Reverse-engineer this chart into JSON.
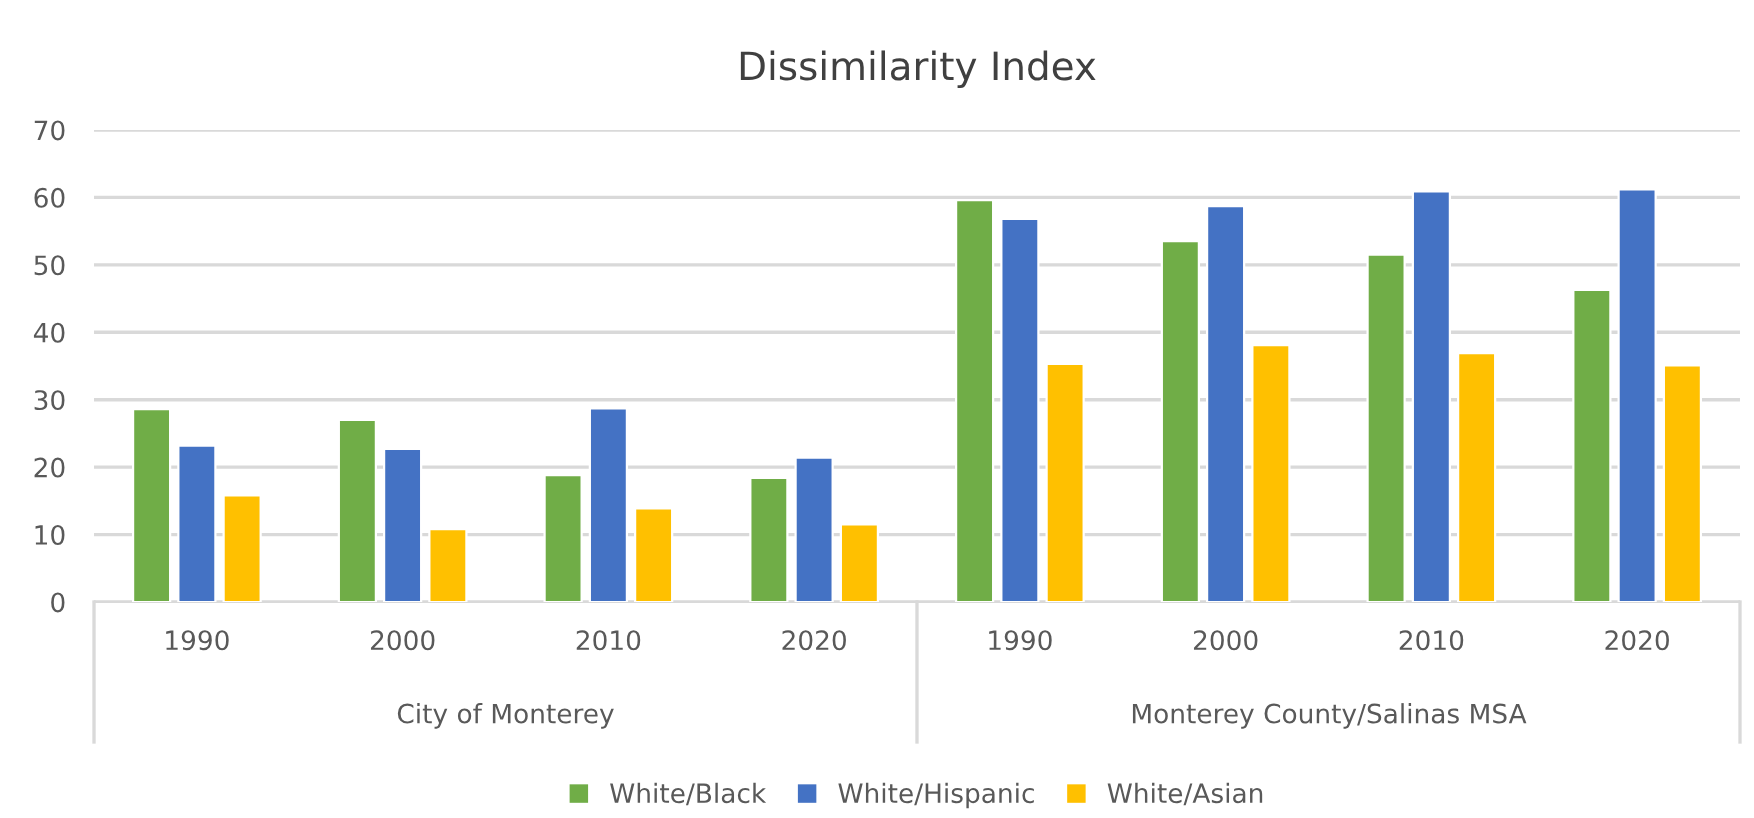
{
  "chart_data": {
    "type": "bar",
    "title": "Dissimilarity Index",
    "categories": [
      "1990",
      "2000",
      "2010",
      "2020",
      "1990",
      "2000",
      "2010",
      "2020"
    ],
    "series": [
      {
        "name": "White/Black",
        "color": "#70ad47",
        "values": [
          28.6,
          27.0,
          18.8,
          18.4,
          59.6,
          53.5,
          51.5,
          46.3
        ]
      },
      {
        "name": "White/Hispanic",
        "color": "#4472c4",
        "values": [
          23.2,
          22.7,
          28.7,
          21.4,
          56.8,
          58.7,
          60.9,
          61.2
        ]
      },
      {
        "name": "White/Asian",
        "color": "#ffc000",
        "values": [
          15.8,
          10.8,
          13.9,
          11.5,
          35.3,
          38.1,
          36.9,
          35.1
        ]
      }
    ],
    "annotations": [
      "City of Monterey",
      "Monterey County/Salinas MSA"
    ],
    "ylim": [
      0,
      70
    ],
    "yticks": [
      0,
      10,
      20,
      30,
      40,
      50,
      60,
      70
    ],
    "grid": "y",
    "legend": "bottom"
  }
}
